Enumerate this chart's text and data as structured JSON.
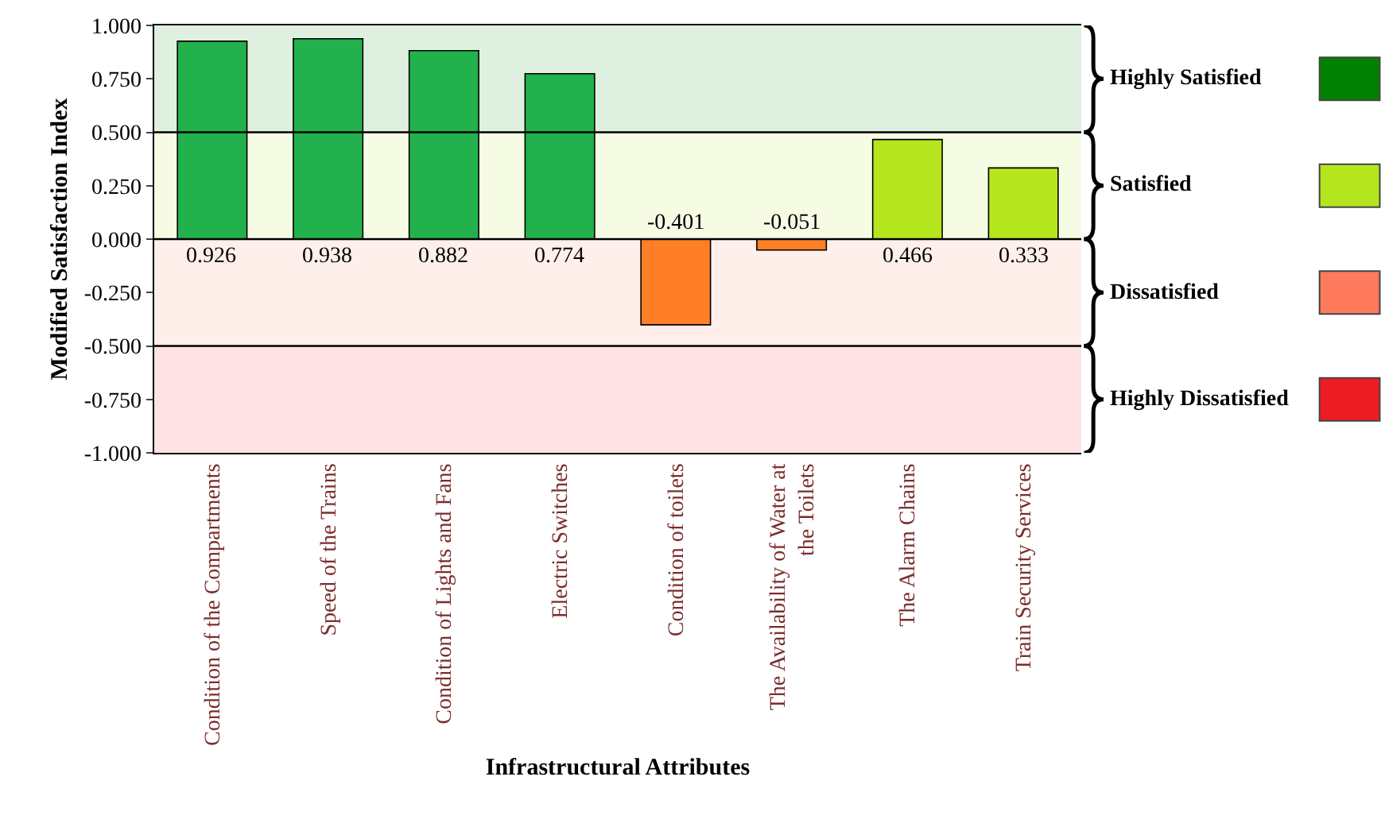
{
  "chart_data": {
    "type": "bar",
    "xlabel": "Infrastructural Attributes",
    "ylabel": "Modified Satisfaction Index",
    "categories": [
      "Condition of the Compartments",
      "Speed of the Trains",
      "Condition of Lights and Fans",
      "Electric Switches",
      "Condition of toilets",
      "The Availability of Water at the Toilets",
      "The Alarm Chains",
      "Train Security Services"
    ],
    "values": [
      0.926,
      0.938,
      0.882,
      0.774,
      -0.401,
      -0.051,
      0.466,
      0.333
    ],
    "colors": [
      "#22b14c",
      "#22b14c",
      "#22b14c",
      "#22b14c",
      "#ff7f27",
      "#ff7f27",
      "#b5e61d",
      "#b5e61d"
    ],
    "data_labels": true,
    "ylim": [
      -1,
      1
    ],
    "yticks": [
      {
        "value": -1,
        "label": "-1.000"
      },
      {
        "value": -0.75,
        "label": "-0.750"
      },
      {
        "value": -0.5,
        "label": "-0.500"
      },
      {
        "value": -0.25,
        "label": "-0.250"
      },
      {
        "value": 0,
        "label": "0.000"
      },
      {
        "value": 0.25,
        "label": "0.250"
      },
      {
        "value": 0.5,
        "label": "0.500"
      },
      {
        "value": 0.75,
        "label": "0.750"
      },
      {
        "value": 1,
        "label": "1.000"
      }
    ],
    "bands": [
      {
        "axis": "y",
        "from": 0.5,
        "to": 1,
        "label": "Highly Satisfied",
        "color": "#008000"
      },
      {
        "axis": "y",
        "from": 0,
        "to": 0.5,
        "label": "Satisfied",
        "color": "#b5e61d"
      },
      {
        "axis": "y",
        "from": -0.5,
        "to": 0,
        "label": "Dissatisfied",
        "color": "#ff7a5c"
      },
      {
        "axis": "y",
        "from": -1,
        "to": -0.5,
        "label": "Highly Dissatisfied",
        "color": "#ed1c24"
      }
    ],
    "ref_lines": [
      {
        "axis": "y",
        "value": 0.5
      },
      {
        "axis": "y",
        "value": 0
      },
      {
        "axis": "y",
        "value": -0.5
      }
    ],
    "grid": false,
    "legend": false
  }
}
